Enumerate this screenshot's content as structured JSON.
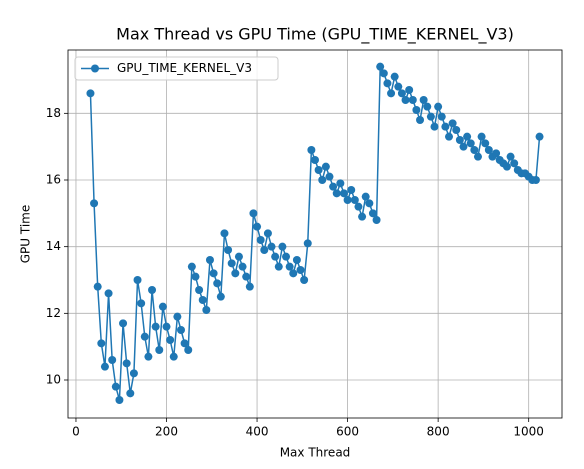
{
  "chart_data": {
    "type": "line",
    "title": "Max Thread vs GPU Time (GPU_TIME_KERNEL_V3)",
    "x_label": "Max Thread",
    "y_label": "GPU Time",
    "x": [
      32,
      40,
      48,
      56,
      64,
      72,
      80,
      88,
      96,
      104,
      112,
      120,
      128,
      136,
      144,
      152,
      160,
      168,
      176,
      184,
      192,
      200,
      208,
      216,
      224,
      232,
      240,
      248,
      256,
      264,
      272,
      280,
      288,
      296,
      304,
      312,
      320,
      328,
      336,
      344,
      352,
      360,
      368,
      376,
      384,
      392,
      400,
      408,
      416,
      424,
      432,
      440,
      448,
      456,
      464,
      472,
      480,
      488,
      496,
      504,
      512,
      520,
      528,
      536,
      544,
      552,
      560,
      568,
      576,
      584,
      592,
      600,
      608,
      616,
      624,
      632,
      640,
      648,
      656,
      664,
      672,
      680,
      688,
      696,
      704,
      712,
      720,
      728,
      736,
      744,
      752,
      760,
      768,
      776,
      784,
      792,
      800,
      808,
      816,
      824,
      832,
      840,
      848,
      856,
      864,
      872,
      880,
      888,
      896,
      904,
      912,
      920,
      928,
      936,
      944,
      952,
      960,
      968,
      976,
      984,
      992,
      1000,
      1008,
      1016,
      1024
    ],
    "series": [
      {
        "name": "GPU_TIME_KERNEL_V3",
        "color": "#1f77b4",
        "values": [
          18.6,
          15.3,
          12.8,
          11.1,
          10.4,
          12.6,
          10.6,
          9.8,
          9.4,
          11.7,
          10.5,
          9.6,
          10.2,
          13.0,
          12.3,
          11.3,
          10.7,
          12.7,
          11.6,
          10.9,
          12.2,
          11.6,
          11.2,
          10.7,
          11.9,
          11.5,
          11.1,
          10.9,
          13.4,
          13.1,
          12.7,
          12.4,
          12.1,
          13.6,
          13.2,
          12.9,
          12.5,
          14.4,
          13.9,
          13.5,
          13.2,
          13.7,
          13.4,
          13.1,
          12.8,
          15.0,
          14.6,
          14.2,
          13.9,
          14.4,
          14.0,
          13.7,
          13.4,
          14.0,
          13.7,
          13.4,
          13.2,
          13.6,
          13.3,
          13.0,
          14.1,
          16.9,
          16.6,
          16.3,
          16.0,
          16.4,
          16.1,
          15.8,
          15.6,
          15.9,
          15.6,
          15.4,
          15.7,
          15.4,
          15.2,
          14.9,
          15.5,
          15.3,
          15.0,
          14.8,
          19.4,
          19.2,
          18.9,
          18.6,
          19.1,
          18.8,
          18.6,
          18.4,
          18.7,
          18.4,
          18.1,
          17.8,
          18.4,
          18.2,
          17.9,
          17.6,
          18.2,
          17.9,
          17.6,
          17.3,
          17.7,
          17.5,
          17.2,
          17.0,
          17.3,
          17.1,
          16.9,
          16.7,
          17.3,
          17.1,
          16.9,
          16.7,
          16.8,
          16.6,
          16.5,
          16.4,
          16.7,
          16.5,
          16.3,
          16.2,
          16.2,
          16.1,
          16.0,
          16.0,
          17.3
        ]
      }
    ],
    "xlim": [
      -17.6,
      1073.6
    ],
    "ylim": [
      8.86,
      19.9
    ],
    "xticks": [
      0,
      200,
      400,
      600,
      800,
      1000
    ],
    "yticks": [
      10,
      12,
      14,
      16,
      18
    ],
    "grid": true,
    "legend": "upper left"
  }
}
